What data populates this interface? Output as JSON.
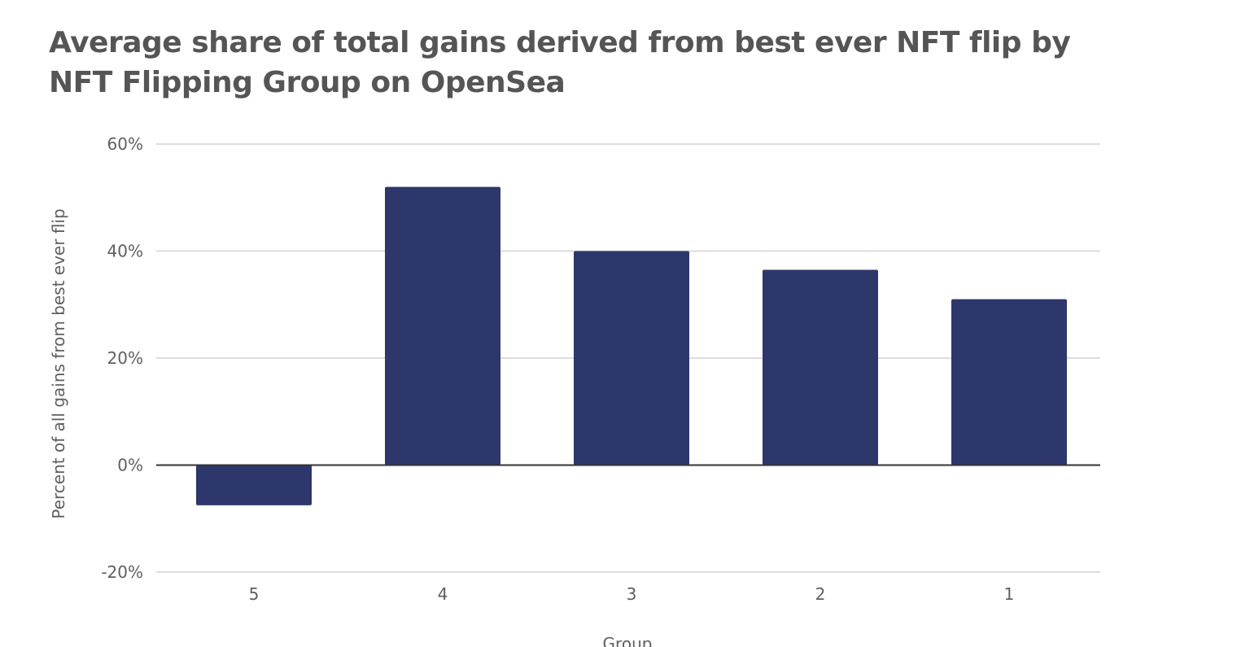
{
  "chart_data": {
    "type": "bar",
    "title": "Average share of total gains derived from best ever NFT flip by NFT Flipping Group on OpenSea",
    "xlabel": "Group",
    "ylabel": "Percent of all gains from best ever flip",
    "categories": [
      "5",
      "4",
      "3",
      "2",
      "1"
    ],
    "values": [
      -7.5,
      52,
      40,
      36.5,
      31
    ],
    "ylim": [
      -20,
      60
    ],
    "yticks": [
      -20,
      0,
      20,
      40,
      60
    ],
    "ytick_labels": [
      "-20%",
      "0%",
      "20%",
      "40%",
      "60%"
    ],
    "grid": true,
    "legend": "none",
    "bar_color": "#2e376b"
  }
}
